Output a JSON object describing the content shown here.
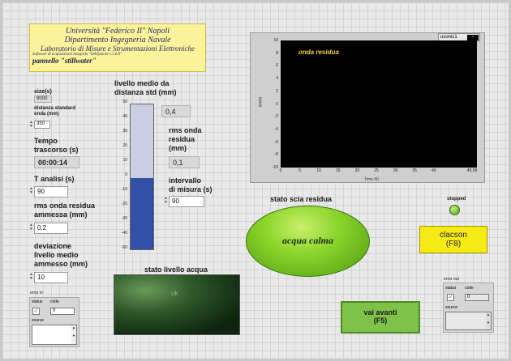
{
  "header": {
    "line1": "Università \"Federico II\"  Napoli",
    "line2": "Dipartimento Ingegneria Navale",
    "line3": "Laboratorio di Misure e Strumentazioni Elettroniche",
    "line4": "Software di acquisizione integrato \"DAQabore v.1.6.8\"",
    "line5": "pannello \"stillwater\""
  },
  "left": {
    "size_label": "size(s)",
    "size_value": "9000",
    "dev_label": "distanza standard\nonda (mm)",
    "dev_value": "350",
    "elapsed_label": "Tempo\ntrascorso (s)",
    "elapsed_value": "00:00:14",
    "t_analisi_label": "T analisi (s)",
    "t_analisi_value": "90",
    "rms_allowed_label": "rms onda residua\nammessa (mm)",
    "rms_allowed_value": "0,2",
    "dev_level_label": "deviazione\nlivello medio\nammesso (mm)",
    "dev_level_value": "10"
  },
  "level": {
    "title": "livello medio da\ndistanza std (mm)",
    "value": "0,4",
    "fill_fraction": 0.49,
    "ticks": [
      "50",
      "40",
      "30",
      "20",
      "10",
      "0",
      "-10",
      "-20",
      "-30",
      "-40",
      "-50"
    ]
  },
  "rms": {
    "label": "rms onda\nresidua\n(mm)",
    "value": "0,1"
  },
  "interval": {
    "label": "intervallo\ndi misura (s)",
    "value": "90"
  },
  "graph": {
    "legend": "usonic1",
    "title": "onda residua",
    "y_label": "livello",
    "x_label": "Time 60",
    "y_ticks": [
      "10",
      "8",
      "6",
      "4",
      "2",
      "0",
      "-2",
      "-4",
      "-6",
      "-8",
      "-10"
    ],
    "x_ticks": [
      "0",
      "5",
      "10",
      "15",
      "20",
      "25",
      "30",
      "35",
      "40",
      "49,99"
    ]
  },
  "stato_scia": {
    "label": "stato scia residua",
    "value": "acqua calma"
  },
  "stopped": {
    "label": "stopped"
  },
  "clacson": {
    "label": "clacson",
    "key": "(F8)"
  },
  "water": {
    "label": "stato livello acqua",
    "value": "ok"
  },
  "vai": {
    "label": "vai avanti",
    "key": "(F5)"
  },
  "error_in": {
    "title": "error in",
    "status": "status",
    "code": "code",
    "code_value": "0",
    "source": "source"
  },
  "error_out": {
    "title": "error out",
    "status": "status",
    "code": "code",
    "code_value": "0",
    "source": "source"
  },
  "colors": {
    "accent_yellow": "#f5ea13",
    "accent_green": "#7fc24a",
    "level_fill": "#3350a8"
  }
}
